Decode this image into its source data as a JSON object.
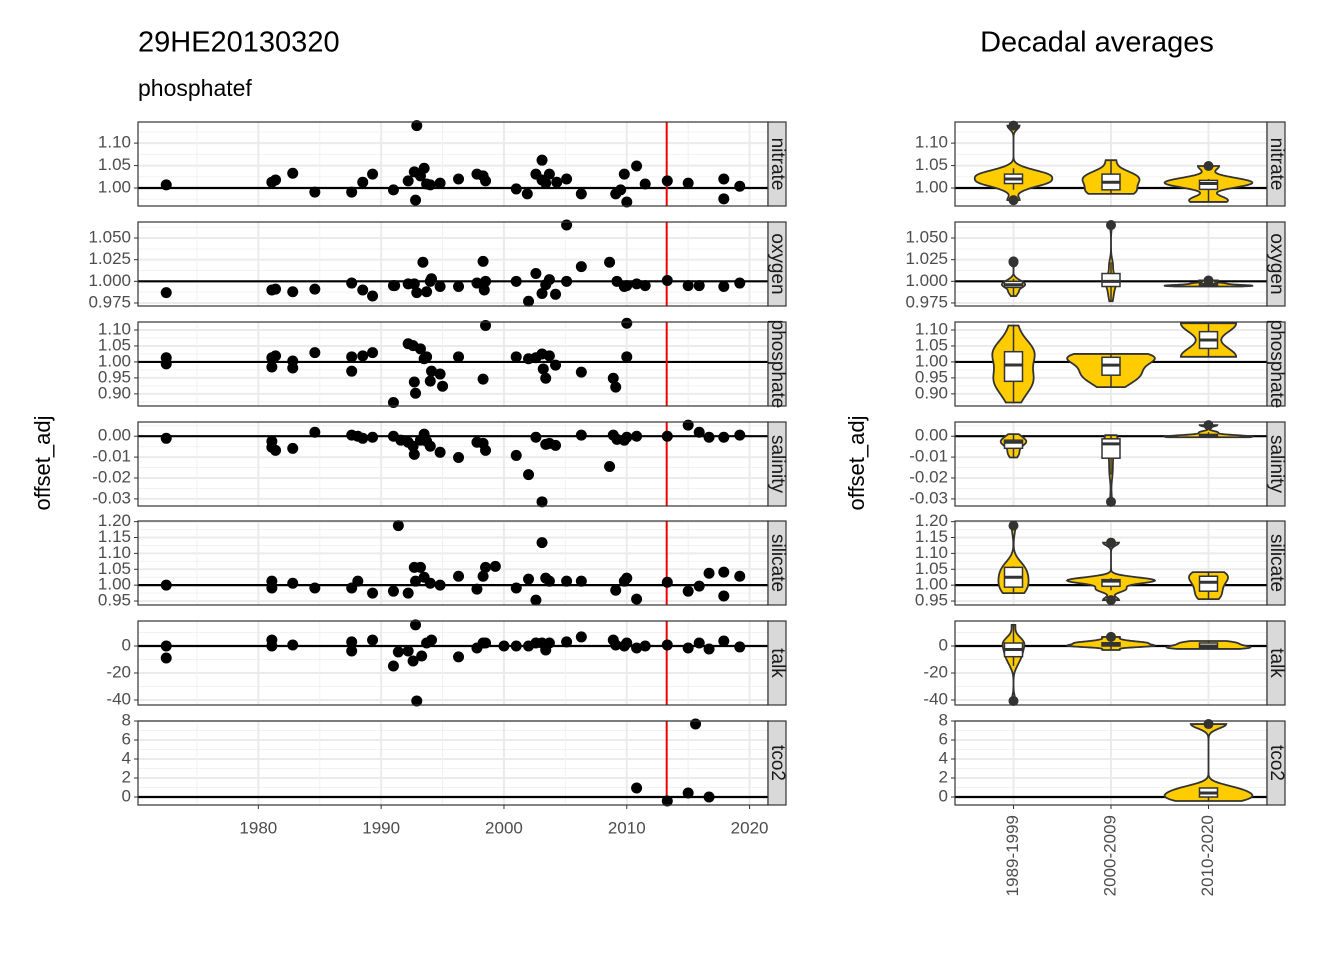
{
  "chart_data": [
    {
      "type": "scatter",
      "title": "29HE20130320",
      "subtitle": "phosphatef",
      "y_label": "offset_adj",
      "xlim": [
        1970.2,
        2021.5
      ],
      "xticks": [
        1980,
        1990,
        2000,
        2010,
        2020
      ],
      "vline": 2013.25,
      "vline_color": "#ee0000",
      "color": "#000000",
      "grid": true,
      "panels": [
        {
          "name": "nitrate",
          "hline": 1,
          "ylim": [
            0.96,
            1.147
          ],
          "yticks": [
            {
              "value": 1,
              "label": "1.00"
            },
            1.05,
            {
              "value": 1.1,
              "label": "1.10"
            }
          ],
          "x": [
            1972.5,
            1981.1,
            1981.4,
            1982.8,
            1984.6,
            1987.6,
            1988.5,
            1989.3,
            1991.0,
            1992.2,
            1992.7,
            1992.9,
            1992.8,
            1993.2,
            1993.5,
            1993.7,
            1994.0,
            1994.8,
            1996.3,
            1997.8,
            1998.3,
            1998.5,
            2001.0,
            2001.9,
            2002.6,
            2003.1,
            2003.1,
            2003.4,
            2003.7,
            2004.3,
            2005.1,
            2006.3,
            2009.1,
            2009.5,
            2009.8,
            2010.0,
            2010.8,
            2011.5,
            2013.3,
            2015.0,
            2017.9,
            2017.9,
            2019.2
          ],
          "y": [
            1.007,
            1.013,
            1.018,
            1.033,
            0.991,
            0.991,
            1.013,
            1.031,
            0.996,
            1.016,
            1.036,
            1.139,
            0.973,
            1.027,
            1.044,
            1.009,
            1.007,
            1.011,
            1.02,
            1.031,
            1.027,
            1.016,
            0.998,
            0.987,
            1.031,
            1.062,
            1.018,
            1.011,
            1.031,
            1.013,
            1.02,
            0.987,
            0.987,
            0.996,
            1.031,
            0.969,
            1.049,
            1.009,
            1.016,
            1.011,
            1.02,
            0.976,
            1.004
          ]
        },
        {
          "name": "oxygen",
          "hline": 1,
          "ylim": [
            0.9715,
            1.0685
          ],
          "yticks": [
            0.975,
            {
              "value": 1,
              "label": "1.000"
            },
            1.025,
            {
              "value": 1.05,
              "label": "1.050"
            }
          ],
          "x": [
            1972.5,
            1981.1,
            1981.4,
            1982.8,
            1984.6,
            1987.6,
            1988.5,
            1989.3,
            1991.0,
            1991.1,
            1992.2,
            1992.7,
            1992.9,
            1993.4,
            1993.7,
            1994.0,
            1994.1,
            1994.8,
            1996.3,
            1997.8,
            1998.3,
            1998.4,
            1998.5,
            2001.0,
            2002.0,
            2002.6,
            2003.1,
            2003.4,
            2003.7,
            2004.2,
            2005.1,
            2005.1,
            2006.3,
            2008.6,
            2009.2,
            2009.8,
            2010.0,
            2010.8,
            2011.5,
            2013.3,
            2015.0,
            2015.9,
            2017.9,
            2019.2
          ],
          "y": [
            0.987,
            0.99,
            0.991,
            0.988,
            0.991,
            0.998,
            0.99,
            0.983,
            0.995,
            0.995,
            0.997,
            0.997,
            0.987,
            1.022,
            0.988,
            1.0,
            1.003,
            0.994,
            0.994,
            0.998,
            1.023,
            0.99,
            1.0,
            1.0,
            0.977,
            1.009,
            0.986,
            0.996,
            1.002,
            0.985,
            1.0,
            1.065,
            1.017,
            1.022,
            1.0,
            0.994,
            0.995,
            0.997,
            0.995,
            1.001,
            0.995,
            0.995,
            0.994,
            0.998
          ]
        },
        {
          "name": "phosphate",
          "hline": 1,
          "ylim": [
            0.862,
            1.125
          ],
          "yticks": [
            {
              "value": 0.9,
              "label": "0.90"
            },
            0.95,
            {
              "value": 1,
              "label": "1.00"
            },
            1.05,
            {
              "value": 1.1,
              "label": "1.10"
            }
          ],
          "x": [
            1972.5,
            1972.5,
            1981.1,
            1981.1,
            1981.4,
            1982.8,
            1982.8,
            1984.6,
            1987.6,
            1987.6,
            1988.5,
            1989.3,
            1991.0,
            1992.2,
            1992.6,
            1992.7,
            1992.8,
            1993.2,
            1993.5,
            1993.7,
            1994.0,
            1994.1,
            1994.8,
            1995.0,
            1996.3,
            1998.3,
            1998.5,
            2001.0,
            2002.0,
            2002.6,
            2003.1,
            2003.2,
            2003.4,
            2003.7,
            2004.2,
            2006.3,
            2008.9,
            2009.1,
            2010.0,
            2010.0
          ],
          "y": [
            1.013,
            0.994,
            1.013,
            0.984,
            1.019,
            1.003,
            0.981,
            1.029,
            1.016,
            0.971,
            1.019,
            1.029,
            0.873,
            1.057,
            1.051,
            0.937,
            0.902,
            1.041,
            1.01,
            1.016,
            0.94,
            0.971,
            0.962,
            0.924,
            1.016,
            0.946,
            1.114,
            1.016,
            1.01,
            1.013,
            1.025,
            0.978,
            0.949,
            1.019,
            0.99,
            0.968,
            0.949,
            0.921,
            1.016,
            1.121
          ]
        },
        {
          "name": "salinity",
          "hline": 0,
          "ylim": [
            -0.0334,
            0.0068
          ],
          "yticks": [
            -0.03,
            -0.02,
            -0.01,
            {
              "value": 0,
              "label": "0.00"
            }
          ],
          "x": [
            1972.5,
            1981.1,
            1981.1,
            1981.4,
            1982.8,
            1984.6,
            1987.6,
            1988.1,
            1988.5,
            1989.3,
            1991.0,
            1991.6,
            1992.2,
            1992.6,
            1992.7,
            1993.2,
            1993.5,
            1993.7,
            1994.0,
            1994.8,
            1996.3,
            1997.8,
            1998.3,
            1998.5,
            2001.0,
            2002.0,
            2002.6,
            2003.1,
            2003.4,
            2003.7,
            2004.2,
            2006.3,
            2008.6,
            2008.9,
            2009.2,
            2009.8,
            2010.0,
            2010.8,
            2013.3,
            2015.0,
            2015.9,
            2016.7,
            2017.9,
            2019.2
          ],
          "y": [
            -0.001,
            -0.0024,
            -0.0053,
            -0.0068,
            -0.0058,
            0.0019,
            0.0005,
            0,
            -0.001,
            -0.0005,
            0,
            -0.0019,
            -0.0029,
            -0.0048,
            -0.0087,
            -0.0019,
            0.001,
            -0.0024,
            -0.0048,
            -0.0077,
            -0.0102,
            -0.0029,
            -0.0034,
            -0.0068,
            -0.0092,
            -0.0184,
            -0.0005,
            -0.0314,
            -0.0039,
            -0.0034,
            -0.0044,
            0.0005,
            -0.0145,
            0.0005,
            -0.0015,
            -0.0019,
            -0.0005,
            0,
            0,
            0.0053,
            0.0019,
            -0.0005,
            -0.0005,
            0.0005
          ]
        },
        {
          "name": "silicate",
          "hline": 1,
          "ylim": [
            0.9375,
            1.202
          ],
          "yticks": [
            0.95,
            {
              "value": 1,
              "label": "1.00"
            },
            1.05,
            {
              "value": 1.1,
              "label": "1.10"
            },
            1.15,
            {
              "value": 1.2,
              "label": "1.20"
            }
          ],
          "x": [
            1972.5,
            1981.1,
            1981.1,
            1982.8,
            1984.6,
            1987.6,
            1988.1,
            1989.3,
            1991.0,
            1991.4,
            1992.2,
            1992.7,
            1992.8,
            1993.2,
            1993.5,
            1994.0,
            1994.8,
            1996.3,
            1997.8,
            1998.3,
            1998.5,
            1999.3,
            2001.0,
            2002.0,
            2002.6,
            2003.1,
            2003.4,
            2003.7,
            2005.1,
            2006.3,
            2009.1,
            2009.8,
            2010.0,
            2010.8,
            2013.3,
            2015.0,
            2015.9,
            2016.7,
            2017.9,
            2017.9,
            2019.2
          ],
          "y": [
            1.0,
            1.0125,
            0.991,
            1.006,
            0.991,
            0.991,
            1.0125,
            0.975,
            0.981,
            1.1875,
            0.975,
            1.056,
            1.0125,
            1.056,
            1.025,
            1.006,
            1.0,
            1.028,
            0.9875,
            1.028,
            1.056,
            1.059,
            0.991,
            1.019,
            0.953,
            1.134,
            1.022,
            1.0125,
            1.0125,
            1.0125,
            0.984,
            1.0125,
            1.022,
            0.956,
            1.009,
            0.981,
            0.997,
            1.0375,
            1.041,
            0.966,
            1.028
          ]
        },
        {
          "name": "talk",
          "hline": 0,
          "ylim": [
            -43.7,
            18.5
          ],
          "yticks": [
            -40,
            -20,
            0
          ],
          "x": [
            1972.5,
            1972.5,
            1981.1,
            1981.1,
            1982.8,
            1987.6,
            1987.6,
            1989.3,
            1991.0,
            1991.4,
            1992.2,
            1992.6,
            1992.8,
            1992.9,
            1993.3,
            1993.7,
            1994.1,
            1996.3,
            1997.8,
            1998.3,
            1998.5,
            2000.0,
            2001.0,
            2002.0,
            2002.6,
            2003.1,
            2003.4,
            2003.7,
            2005.1,
            2006.3,
            2008.9,
            2009.1,
            2009.8,
            2010.0,
            2010.8,
            2011.5,
            2013.3,
            2015.0,
            2015.9,
            2016.7,
            2017.9,
            2019.2
          ],
          "y": [
            0,
            -8.9,
            4.4,
            0,
            0.7,
            3.0,
            -3.7,
            4.4,
            -14.8,
            -4.4,
            -3.7,
            -11.1,
            15.6,
            -40.7,
            -7.4,
            2.2,
            4.4,
            -8.1,
            -1.5,
            2.2,
            2.2,
            0,
            0,
            0,
            2.2,
            2.2,
            -3.0,
            2.2,
            3.0,
            6.7,
            4.4,
            0.7,
            0,
            2.2,
            -1.5,
            0,
            0.7,
            -1.5,
            2.2,
            -2.2,
            3.7,
            -0.7
          ]
        },
        {
          "name": "tco2",
          "hline": 0,
          "ylim": [
            -0.84,
            8
          ],
          "yticks": [
            0,
            2,
            4,
            6,
            8
          ],
          "x": [
            2010.8,
            2013.3,
            2015.0,
            2015.6,
            2016.7
          ],
          "y": [
            0.95,
            -0.42,
            0.42,
            7.68,
            0
          ]
        }
      ]
    },
    {
      "type": "violin",
      "title": "Decadal averages",
      "y_label": "offset_adj",
      "categories": [
        "1989-1999",
        "2000-2009",
        "2010-2020"
      ],
      "color": "#ffcc00",
      "line_color": "#333333"
    }
  ]
}
